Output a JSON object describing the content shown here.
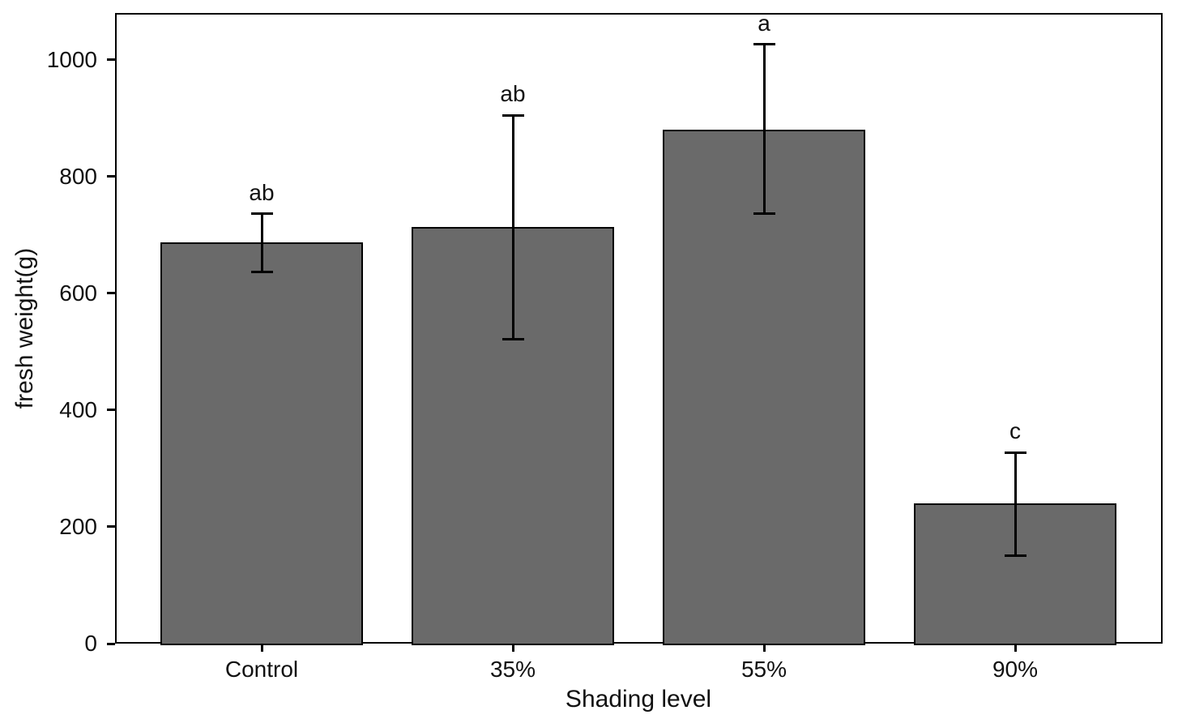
{
  "chart_data": {
    "type": "bar",
    "title": "",
    "xlabel": "Shading level",
    "ylabel": "fresh weight(g)",
    "categories": [
      "Control",
      "35%",
      "55%",
      "90%"
    ],
    "series": [
      {
        "name": "fresh weight",
        "values": [
          687,
          713,
          880,
          240
        ],
        "error_low": [
          636,
          521,
          736,
          151
        ],
        "error_high": [
          736,
          905,
          1026,
          327
        ],
        "significance_letters": [
          "ab",
          "ab",
          "a",
          "c"
        ]
      }
    ],
    "ylim": [
      0,
      1080
    ],
    "yticks": [
      0,
      200,
      400,
      600,
      800,
      1000
    ],
    "grid": false,
    "legend_position": "none",
    "bar_fill_color": "#6a6a6a",
    "bar_edge_color": "#000000",
    "error_bar_color": "#000000"
  }
}
